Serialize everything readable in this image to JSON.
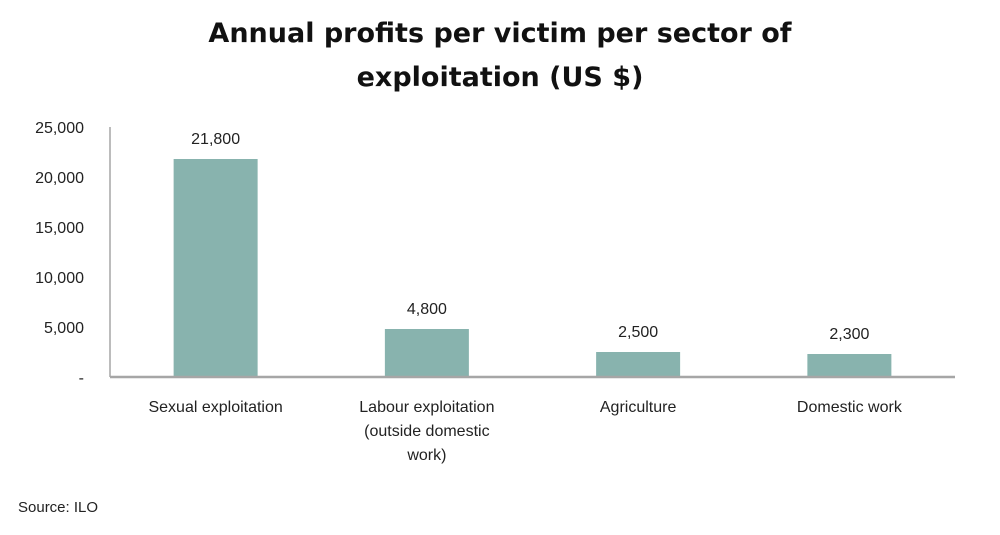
{
  "chart_data": {
    "type": "bar",
    "title": "Annual profits per victim per sector of exploitation (US $)",
    "title_lines": [
      "Annual profits per victim per sector of",
      "exploitation (US $)"
    ],
    "categories": [
      "Sexual exploitation",
      "Labour exploitation (outside domestic work)",
      "Agriculture",
      "Domestic work"
    ],
    "category_lines": [
      [
        "Sexual exploitation"
      ],
      [
        "Labour exploitation",
        "(outside domestic",
        "work)"
      ],
      [
        "Agriculture"
      ],
      [
        "Domestic work"
      ]
    ],
    "values": [
      21800,
      4800,
      2500,
      2300
    ],
    "data_labels": [
      "21,800",
      "4,800",
      "2,500",
      "2,300"
    ],
    "xlabel": "",
    "ylabel": "",
    "ylim": [
      0,
      25000
    ],
    "yticks": [
      0,
      5000,
      10000,
      15000,
      20000,
      25000
    ],
    "ytick_labels": [
      "-",
      "5,000",
      "10,000",
      "15,000",
      "20,000",
      "25,000"
    ],
    "grid": false,
    "legend": "none",
    "bar_color": "#88b3ae",
    "axis_color": "#a6a6a6"
  },
  "source": "Source: ILO"
}
